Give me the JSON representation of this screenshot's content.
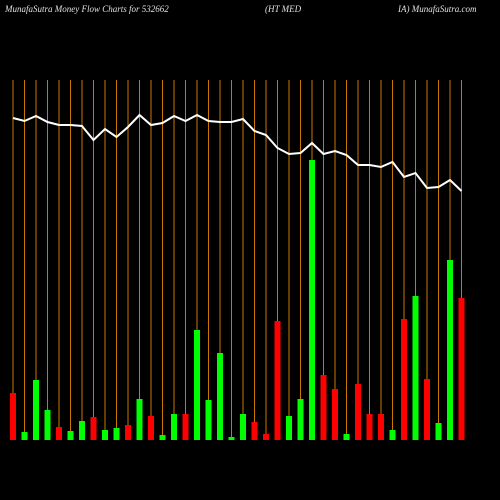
{
  "chart_data": {
    "type": "money-flow",
    "title_parts": [
      "MunafaSutra  Money Flow  Charts for 532662",
      "(HT MED",
      "IA) MunafaSutra.com"
    ],
    "ylim": [
      0,
      360
    ],
    "series": [
      {
        "name": "Price",
        "color": "#ffffff",
        "values": [
          322,
          319,
          324,
          318,
          315,
          315,
          314,
          300,
          311,
          303,
          313,
          325,
          315,
          317,
          324,
          319,
          325,
          319,
          318,
          318,
          321,
          309,
          305,
          292,
          286,
          287,
          297,
          286,
          289,
          285,
          275,
          275,
          273,
          278,
          263,
          267,
          252,
          253,
          260,
          249
        ]
      },
      {
        "name": "Flow",
        "up_color": "#00ff00",
        "down_color": "#ff0000",
        "values": [
          47,
          8,
          60,
          30,
          13,
          9,
          19,
          23,
          10,
          12,
          15,
          41,
          24,
          5,
          26,
          26,
          110,
          40,
          87,
          3,
          26,
          18,
          6,
          119,
          24,
          41,
          280,
          65,
          51,
          6,
          56,
          26,
          26,
          10,
          121,
          144,
          61,
          17,
          180,
          142
        ],
        "direction": [
          "down",
          "up",
          "up",
          "up",
          "down",
          "up",
          "up",
          "down",
          "up",
          "up",
          "down",
          "up",
          "down",
          "up",
          "up",
          "down",
          "up",
          "up",
          "up",
          "up",
          "up",
          "down",
          "down",
          "down",
          "up",
          "up",
          "up",
          "down",
          "down",
          "up",
          "down",
          "down",
          "down",
          "up",
          "down",
          "up",
          "down",
          "up",
          "up",
          "down"
        ]
      }
    ]
  }
}
